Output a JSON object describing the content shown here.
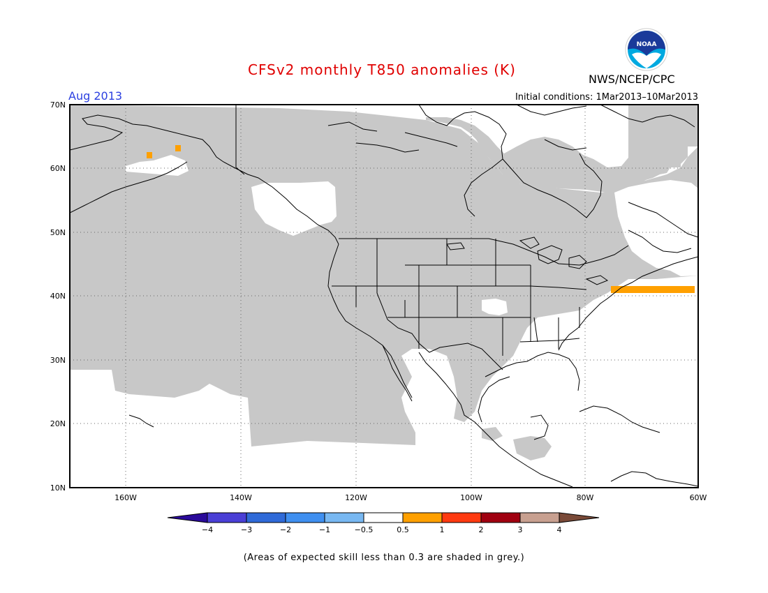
{
  "title": "CFSv2 monthly T850 anomalies (K)",
  "month": "Aug 2013",
  "initial_conditions": "Initial conditions: 1Mar2013–10Mar2013",
  "agency": "NWS/NCEP/CPC",
  "logo_text": "NOAA",
  "footnote": "(Areas of expected skill less than 0.3 are shaded in grey.)",
  "latitude_labels": [
    "70N",
    "60N",
    "50N",
    "40N",
    "30N",
    "20N",
    "10N"
  ],
  "longitude_labels": [
    "160W",
    "140W",
    "120W",
    "100W",
    "80W",
    "60W"
  ],
  "colorbar": {
    "labels": [
      "−4",
      "−3",
      "−2",
      "−1",
      "−0.5",
      "0.5",
      "1",
      "2",
      "3",
      "4"
    ],
    "colors": [
      "#2a0a9a",
      "#4a3fd6",
      "#2f6ad8",
      "#3f8ff0",
      "#78b8f2",
      "#ffffff",
      "#ffa000",
      "#ff3a10",
      "#a00010",
      "#c8a090",
      "#7a4a38"
    ]
  },
  "colors": {
    "skill_grey": "#c8c8c8",
    "anomaly_orange": "#ffa000"
  }
}
